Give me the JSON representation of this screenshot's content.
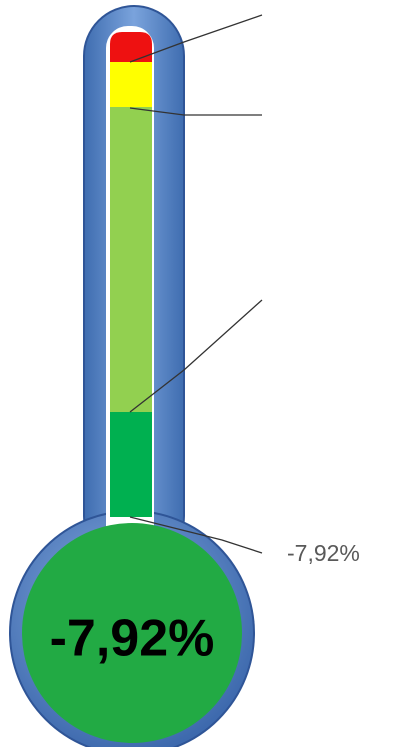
{
  "callout_label": "-7,92%",
  "bulb_label": "-7,92%"
}
